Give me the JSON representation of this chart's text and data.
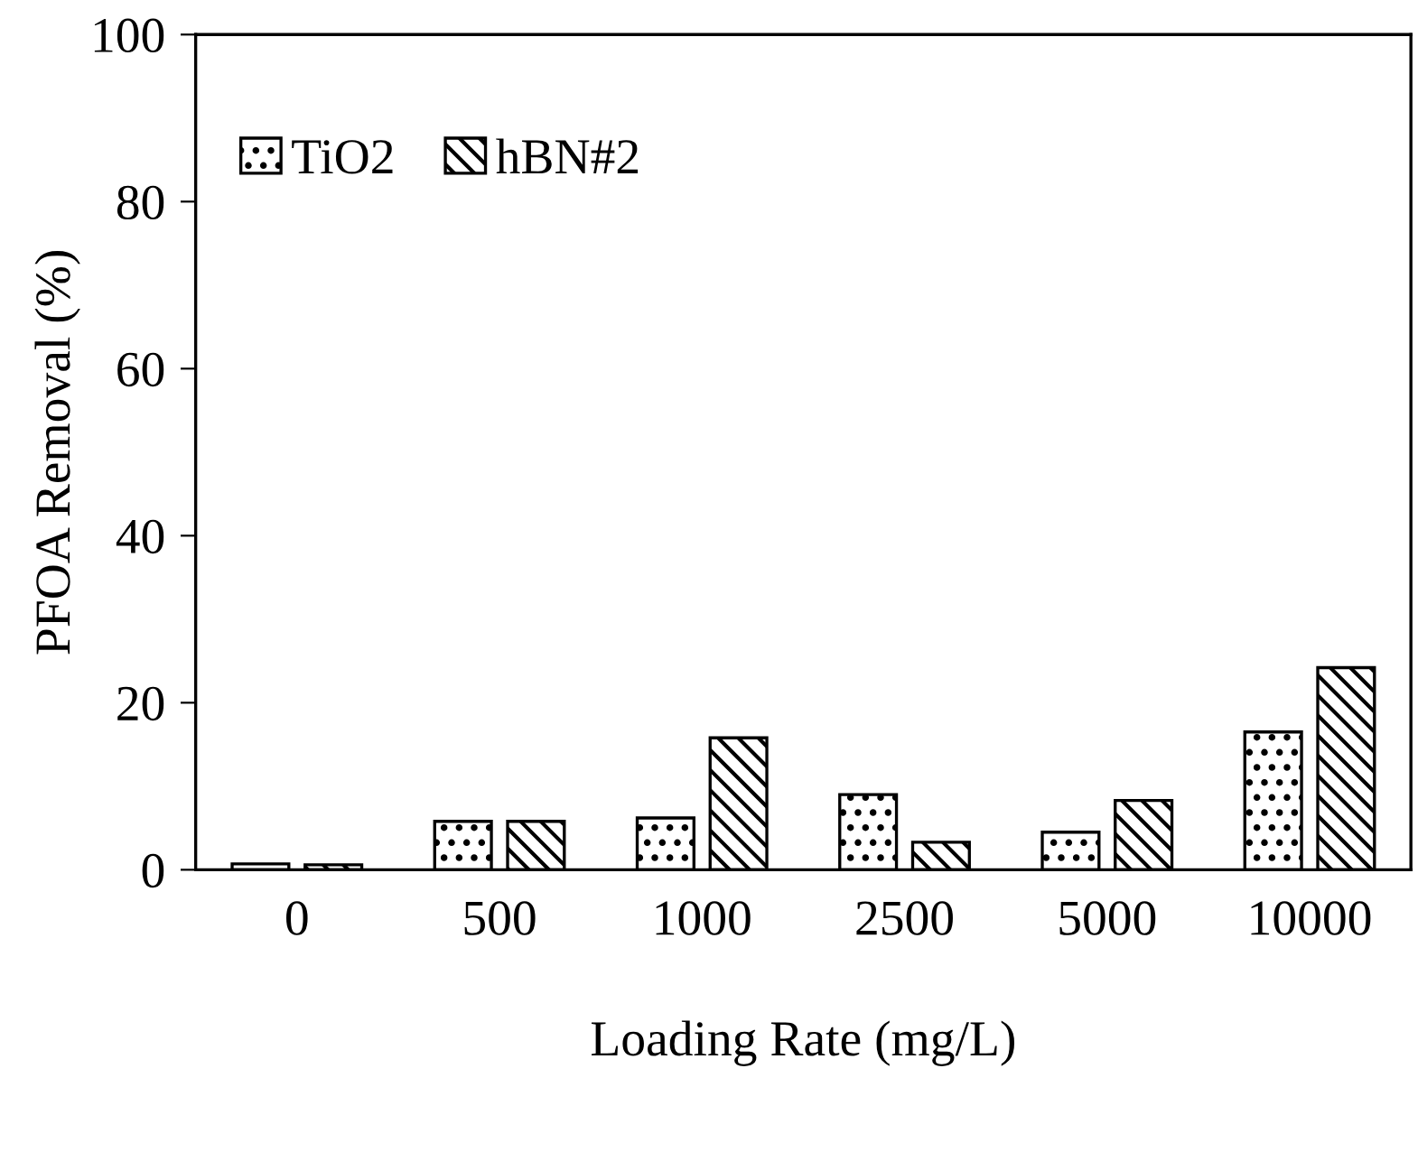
{
  "chart_data": {
    "type": "bar",
    "xlabel": "Loading Rate (mg/L)",
    "ylabel": "PFOA Removal (%)",
    "categories": [
      "0",
      "500",
      "1000",
      "2500",
      "5000",
      "10000"
    ],
    "series": [
      {
        "name": "TiO2",
        "color": "#000000",
        "values": [
          0.7,
          5.8,
          6.2,
          9.0,
          4.5,
          16.5
        ]
      },
      {
        "name": "hBN#2",
        "color": "#000000",
        "values": [
          0.6,
          5.8,
          15.8,
          3.3,
          8.3,
          24.2
        ]
      }
    ],
    "ylim": [
      0,
      100
    ],
    "yticks": [
      0,
      20,
      40,
      60,
      80,
      100
    ],
    "grid": false,
    "legend": "top left"
  }
}
